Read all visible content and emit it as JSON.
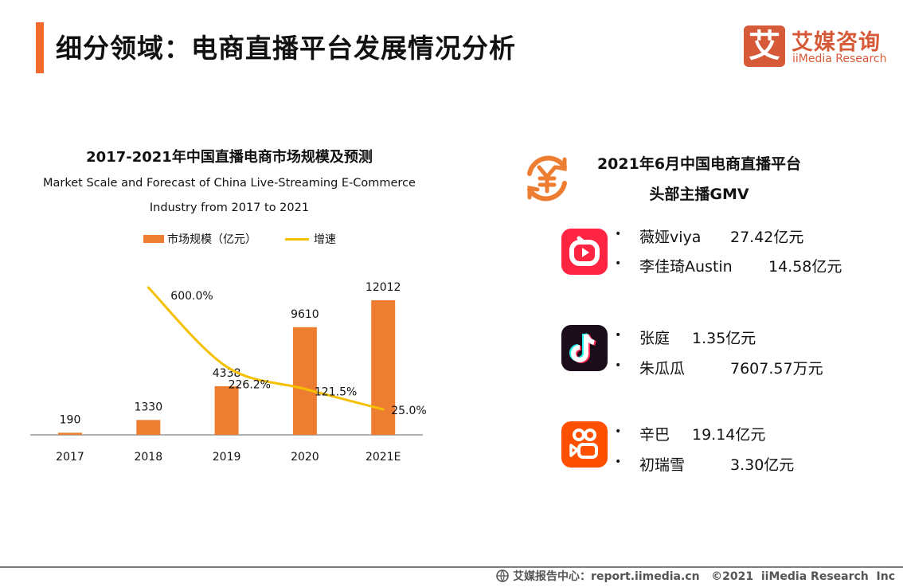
{
  "header": {
    "title": "细分领域：电商直播平台发展情况分析",
    "logo_cn": "艾媒咨询",
    "logo_en": "iiMedia Research",
    "logo_mark": "艾"
  },
  "chart_data": {
    "type": "bar+line",
    "title": "2017-2021年中国直播电商市场规模及预测",
    "subtitle_lines": [
      "Market Scale and Forecast of China Live-Streaming E-Commerce",
      "Industry from 2017 to 2021"
    ],
    "categories": [
      "2017",
      "2018",
      "2019",
      "2020",
      "2021E"
    ],
    "series": [
      {
        "name": "市场规模（亿元）",
        "type": "bar",
        "values": [
          190,
          1330,
          4338,
          9610,
          12012
        ],
        "labels": [
          "190",
          "1330",
          "4338",
          "9610",
          "12012"
        ],
        "color": "#ed7d31"
      },
      {
        "name": "增速",
        "type": "line",
        "values": [
          null,
          600.0,
          226.2,
          121.5,
          25.0
        ],
        "labels": [
          "",
          "600.0%",
          "226.2%",
          "121.5%",
          "25.0%"
        ],
        "color": "#f5c000",
        "smooth": true
      }
    ],
    "legend": "top",
    "grid": false
  },
  "gmv": {
    "title_line1": "2021年6月中国电商直播平台",
    "title_line2": "头部主播GMV",
    "bullet": "•",
    "platforms": [
      {
        "icon": "taobao-live-icon",
        "color": "#ff2442",
        "anchors": [
          {
            "name": "薇娅viya",
            "value": "27.42亿元"
          },
          {
            "name": "李佳琦Austin",
            "value": "14.58亿元"
          }
        ]
      },
      {
        "icon": "douyin-icon",
        "color": "#1c0d1a",
        "anchors": [
          {
            "name": "张庭",
            "value": "1.35亿元"
          },
          {
            "name": "朱瓜瓜",
            "value": "7607.57万元"
          }
        ]
      },
      {
        "icon": "kuaishou-icon",
        "color": "#ff5000",
        "anchors": [
          {
            "name": "辛巴",
            "value": "19.14亿元"
          },
          {
            "name": "初瑞雪",
            "value": "3.30亿元"
          }
        ]
      }
    ]
  },
  "footer": {
    "text": "艾媒报告中心：report.iimedia.cn   ©2021  iiMedia Research  Inc"
  }
}
